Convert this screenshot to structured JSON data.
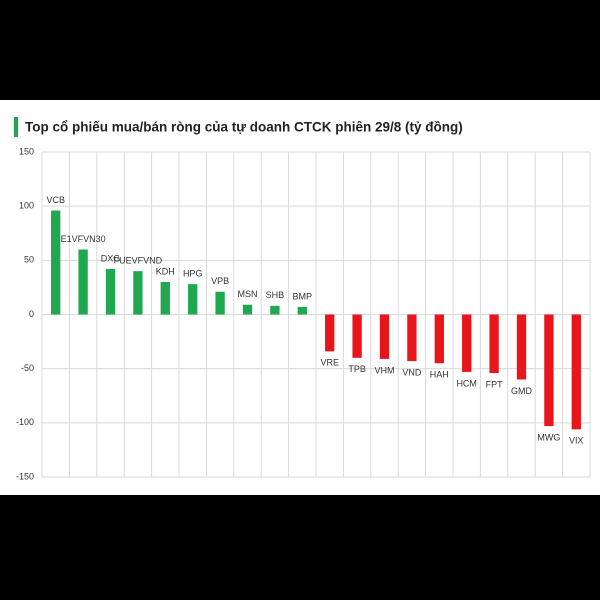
{
  "chart_data": {
    "type": "bar",
    "title": "Top cổ phiếu mua/bán ròng của tự doanh CTCK phiên 29/8 (tỷ đồng)",
    "categories": [
      "VCB",
      "E1VFVN30",
      "DXG",
      "FUEVFVND",
      "KDH",
      "HPG",
      "VPB",
      "MSN",
      "SHB",
      "BMP",
      "VRE",
      "TPB",
      "VHM",
      "VND",
      "HAH",
      "HCM",
      "FPT",
      "GMD",
      "MWG",
      "VIX"
    ],
    "values": [
      96,
      60,
      42,
      40,
      30,
      28,
      21,
      9,
      8,
      7,
      -34,
      -40,
      -41,
      -43,
      -45,
      -53,
      -54,
      -60,
      -103,
      -106
    ],
    "positive_color": "#1fa84f",
    "negative_color": "#e8161b",
    "ylim": [
      -150,
      150
    ],
    "yticks": [
      -150,
      -100,
      -50,
      0,
      50,
      100,
      150
    ],
    "grid": true
  }
}
